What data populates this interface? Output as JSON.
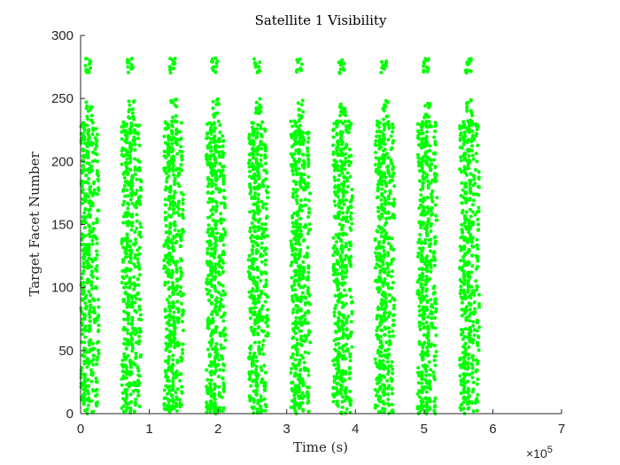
{
  "chart_data": {
    "type": "scatter",
    "title": "Satellite 1 Visibility",
    "xlabel": "Time (s)",
    "ylabel": "Target Facet Number",
    "x_exponent_label": "×10",
    "x_exponent_power": "5",
    "xlim": [
      0,
      7
    ],
    "ylim": [
      0,
      300
    ],
    "x_ticks": [
      0,
      1,
      2,
      3,
      4,
      5,
      6,
      7
    ],
    "y_ticks": [
      0,
      50,
      100,
      150,
      200,
      250,
      300
    ],
    "marker_color": "#00ff00",
    "grid": false,
    "orbit_period": 0.615,
    "num_orbits": 10,
    "bands": [
      {
        "y_min": 0,
        "y_max": 45
      },
      {
        "y_min": 45,
        "y_max": 95
      },
      {
        "y_min": 95,
        "y_max": 140
      },
      {
        "y_min": 140,
        "y_max": 192
      },
      {
        "y_min": 192,
        "y_max": 232
      },
      {
        "y_min": 232,
        "y_max": 250
      },
      {
        "y_min": 270,
        "y_max": 282
      }
    ]
  }
}
